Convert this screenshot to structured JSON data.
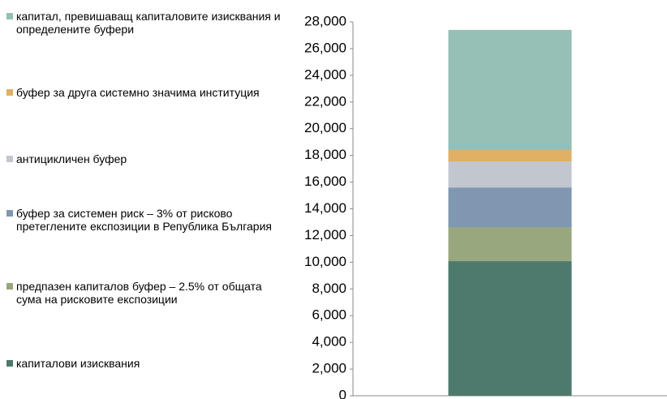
{
  "chart_data": {
    "type": "stacked_bar",
    "categories": [
      null
    ],
    "series": [
      {
        "name": "капиталови изисквания",
        "color": "#4e7a6e",
        "values": [
          10080
        ]
      },
      {
        "name": "предпазен капиталов буфер –  2.5% от общата сума на рисковите експозиции",
        "color": "#98a77e",
        "values": [
          2530
        ]
      },
      {
        "name": "буфер за системен риск – 3% от рисково претеглените експозиции в Република България",
        "color": "#7f97b0",
        "values": [
          2990
        ]
      },
      {
        "name": "антицикличен буфер",
        "color": "#c2c6cf",
        "values": [
          1950
        ]
      },
      {
        "name": "буфер за друга системно значима институция",
        "color": "#e0b064",
        "values": [
          850
        ]
      },
      {
        "name": "капитал, превишаващ капиталовите изисквания и определените буфери",
        "color": "#96bfb5",
        "values": [
          9000
        ]
      }
    ],
    "ylim": [
      0,
      28000
    ],
    "yticks": [
      0,
      {
        "value": 2000,
        "label": "2,000"
      },
      {
        "value": 4000,
        "label": "4,000"
      },
      {
        "value": 6000,
        "label": "6,000"
      },
      {
        "value": 8000,
        "label": "8,000"
      },
      {
        "value": 10000,
        "label": "10,000"
      },
      {
        "value": 12000,
        "label": "12,000"
      },
      {
        "value": 14000,
        "label": "14,000"
      },
      {
        "value": 16000,
        "label": "16,000"
      },
      {
        "value": 18000,
        "label": "18,000"
      },
      {
        "value": 20000,
        "label": "20,000"
      },
      {
        "value": 22000,
        "label": "22,000"
      },
      {
        "value": 24000,
        "label": "24,000"
      },
      {
        "value": 26000,
        "label": "26,000"
      },
      {
        "value": 28000,
        "label": "28,000"
      }
    ],
    "legend": "left",
    "grid": false
  }
}
